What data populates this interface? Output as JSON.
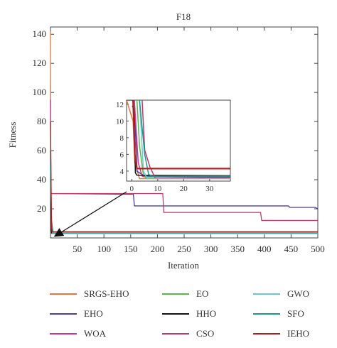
{
  "chart_data": {
    "type": "line",
    "title": "F18",
    "xlabel": "Iteration",
    "ylabel": "Fitness",
    "xlim": [
      0,
      500
    ],
    "ylim": [
      0,
      145
    ],
    "xticks": [
      50,
      100,
      150,
      200,
      250,
      300,
      350,
      400,
      450,
      500
    ],
    "yticks": [
      20,
      40,
      60,
      80,
      100,
      120,
      140
    ],
    "grid": false,
    "legend_position": "bottom",
    "series": [
      {
        "name": "SRGS-EHO",
        "color": "#e8743b",
        "x": [
          0,
          1,
          2,
          500
        ],
        "y": [
          142,
          8,
          3,
          3
        ]
      },
      {
        "name": "EHO",
        "color": "#4b3f9e",
        "x": [
          0,
          1,
          155,
          157,
          445,
          448,
          495,
          500
        ],
        "y": [
          31,
          30.5,
          30,
          22,
          22,
          21,
          21,
          20
        ]
      },
      {
        "name": "WOA",
        "color": "#d0348f",
        "x": [
          0,
          1,
          3,
          500
        ],
        "y": [
          95,
          12,
          3.3,
          3.3
        ]
      },
      {
        "name": "EO",
        "color": "#58b848",
        "x": [
          0,
          2,
          4,
          500
        ],
        "y": [
          40,
          10,
          3.3,
          3.3
        ]
      },
      {
        "name": "HHO",
        "color": "#111111",
        "x": [
          0,
          1,
          2,
          500
        ],
        "y": [
          60,
          10,
          3.4,
          3.4
        ]
      },
      {
        "name": "CSO",
        "color": "#c03a6f",
        "x": [
          0,
          1,
          210,
          212,
          393,
          395,
          500
        ],
        "y": [
          31,
          30.5,
          30.5,
          17.5,
          17.5,
          12,
          12
        ]
      },
      {
        "name": "GWO",
        "color": "#6cc8d0",
        "x": [
          0,
          2,
          4,
          500
        ],
        "y": [
          70,
          9,
          3.2,
          3.2
        ]
      },
      {
        "name": "SFO",
        "color": "#1a9a8a",
        "x": [
          0,
          2,
          5,
          500
        ],
        "y": [
          50,
          12,
          3.4,
          3.4
        ]
      },
      {
        "name": "IEHO",
        "color": "#b02020",
        "x": [
          0,
          2,
          3,
          500
        ],
        "y": [
          80,
          7,
          4.3,
          4.3
        ]
      }
    ],
    "inset": {
      "xlim": [
        -2,
        38
      ],
      "ylim": [
        2.8,
        12.5
      ],
      "xticks": [
        0,
        10,
        20,
        30
      ],
      "yticks": [
        4,
        6,
        8,
        10,
        12
      ],
      "series": [
        {
          "name": "SRGS-EHO",
          "color": "#e8743b",
          "x": [
            -2,
            0.5,
            1.2,
            3,
            38
          ],
          "y": [
            12.5,
            10,
            5,
            3.1,
            3.1
          ]
        },
        {
          "name": "EHO",
          "color": "#4b3f9e",
          "x": [
            -2,
            1,
            2,
            5,
            38
          ],
          "y": [
            12.5,
            12.5,
            4,
            3.4,
            3.3
          ]
        },
        {
          "name": "WOA",
          "color": "#d0348f",
          "x": [
            1,
            2.5,
            4,
            6,
            38
          ],
          "y": [
            12.5,
            5,
            3.4,
            3.2,
            3.2
          ]
        },
        {
          "name": "EO",
          "color": "#58b848",
          "x": [
            2,
            3,
            4.5,
            5.5,
            38
          ],
          "y": [
            12.5,
            7,
            3.5,
            3.2,
            3.2
          ]
        },
        {
          "name": "HHO",
          "color": "#111111",
          "x": [
            0.2,
            0.8,
            1.4,
            2,
            38
          ],
          "y": [
            11.8,
            11.5,
            3.8,
            3.5,
            3.45
          ]
        },
        {
          "name": "CSO",
          "color": "#c03a6f",
          "x": [
            4,
            5,
            7,
            9,
            38
          ],
          "y": [
            12.5,
            6.5,
            4.5,
            3.2,
            3.2
          ]
        },
        {
          "name": "GWO",
          "color": "#6cc8d0",
          "x": [
            3,
            4.5,
            6,
            38
          ],
          "y": [
            12.5,
            4,
            3.1,
            3.1
          ]
        },
        {
          "name": "SFO",
          "color": "#1a9a8a",
          "x": [
            3,
            5,
            6.5,
            8,
            38
          ],
          "y": [
            12.5,
            6,
            3.6,
            3.4,
            3.4
          ]
        },
        {
          "name": "IEHO",
          "color": "#b02020",
          "x": [
            0.5,
            1.2,
            2,
            38
          ],
          "y": [
            12.5,
            6,
            4.3,
            4.3
          ]
        }
      ]
    }
  }
}
